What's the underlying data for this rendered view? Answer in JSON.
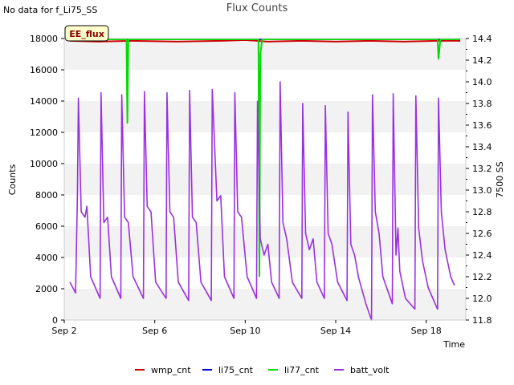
{
  "header": {
    "no_data_note": "No data for f_Li75_SS",
    "title": "Flux Counts"
  },
  "chart_data": {
    "type": "line",
    "title": "Flux Counts",
    "xlabel": "Time",
    "ylabel": "Counts",
    "y2label": "7500 SS",
    "annotation": "EE_flux",
    "xlim": [
      "2023-09-02T00:00",
      "2023-09-19T18:00"
    ],
    "x_ticks": [
      {
        "label": "Sep 2",
        "date": "2023-09-02"
      },
      {
        "label": "Sep 6",
        "date": "2023-09-06"
      },
      {
        "label": "Sep 10",
        "date": "2023-09-10"
      },
      {
        "label": "Sep 14",
        "date": "2023-09-14"
      },
      {
        "label": "Sep 18",
        "date": "2023-09-18"
      }
    ],
    "ylim": [
      0,
      18000
    ],
    "y_ticks": [
      0,
      2000,
      4000,
      6000,
      8000,
      10000,
      12000,
      14000,
      16000,
      18000
    ],
    "y2lim": [
      11.8,
      14.4
    ],
    "y2_ticks": [
      11.8,
      12.0,
      12.2,
      12.4,
      12.6,
      12.8,
      13.0,
      13.2,
      13.4,
      13.6,
      13.8,
      14.0,
      14.2,
      14.4
    ],
    "grid": "horizontal bands",
    "legend_position": "bottom",
    "series": [
      {
        "name": "wmp_cnt",
        "color": "#cc0000",
        "axis": "left",
        "points": [
          [
            "2023-09-02T06:00",
            17850
          ],
          [
            "2023-09-03T12:00",
            17800
          ],
          [
            "2023-09-05T00:00",
            17850
          ],
          [
            "2023-09-07T00:00",
            17800
          ],
          [
            "2023-09-09T00:00",
            17850
          ],
          [
            "2023-09-10T00:00",
            17900
          ],
          [
            "2023-09-11T00:00",
            17800
          ],
          [
            "2023-09-12T12:00",
            17850
          ],
          [
            "2023-09-14T00:00",
            17800
          ],
          [
            "2023-09-15T12:00",
            17850
          ],
          [
            "2023-09-17T00:00",
            17800
          ],
          [
            "2023-09-18T12:00",
            17850
          ],
          [
            "2023-09-19T12:00",
            17850
          ]
        ]
      },
      {
        "name": "li75_cnt",
        "color": "#0000cc",
        "axis": "left",
        "points": [
          [
            "2023-09-02T06:00",
            17950
          ],
          [
            "2023-09-19T12:00",
            17950
          ]
        ]
      },
      {
        "name": "li77_cnt",
        "color": "#00dd00",
        "axis": "left",
        "points": [
          [
            "2023-09-02T06:00",
            17950
          ],
          [
            "2023-09-04T18:00",
            17950
          ],
          [
            "2023-09-04T19:00",
            12600
          ],
          [
            "2023-09-04T20:00",
            17950
          ],
          [
            "2023-09-10T14:00",
            17950
          ],
          [
            "2023-09-10T15:00",
            2800
          ],
          [
            "2023-09-10T16:00",
            17000
          ],
          [
            "2023-09-10T18:00",
            17950
          ],
          [
            "2023-09-18T12:00",
            17950
          ],
          [
            "2023-09-18T13:00",
            16700
          ],
          [
            "2023-09-18T15:00",
            17950
          ],
          [
            "2023-09-19T12:00",
            17950
          ]
        ]
      },
      {
        "name": "batt_volt",
        "color": "#9b30e0",
        "axis": "right",
        "points": [
          [
            "2023-09-02T06:00",
            12.15
          ],
          [
            "2023-09-02T09:00",
            12.1
          ],
          [
            "2023-09-02T12:00",
            12.05
          ],
          [
            "2023-09-02T14:00",
            12.95
          ],
          [
            "2023-09-02T15:00",
            13.85
          ],
          [
            "2023-09-02T18:00",
            12.8
          ],
          [
            "2023-09-02T22:00",
            12.75
          ],
          [
            "2023-09-03T00:00",
            12.85
          ],
          [
            "2023-09-03T04:00",
            12.2
          ],
          [
            "2023-09-03T14:00",
            12.0
          ],
          [
            "2023-09-03T15:00",
            13.9
          ],
          [
            "2023-09-03T18:00",
            12.7
          ],
          [
            "2023-09-03T22:00",
            12.75
          ],
          [
            "2023-09-04T02:00",
            12.2
          ],
          [
            "2023-09-04T12:00",
            12.0
          ],
          [
            "2023-09-04T13:00",
            13.88
          ],
          [
            "2023-09-04T16:00",
            12.75
          ],
          [
            "2023-09-04T20:00",
            12.7
          ],
          [
            "2023-09-05T01:00",
            12.2
          ],
          [
            "2023-09-05T12:00",
            12.0
          ],
          [
            "2023-09-05T13:00",
            13.91
          ],
          [
            "2023-09-05T16:00",
            12.85
          ],
          [
            "2023-09-05T20:00",
            12.8
          ],
          [
            "2023-09-06T01:00",
            12.15
          ],
          [
            "2023-09-06T12:00",
            12.0
          ],
          [
            "2023-09-06T13:00",
            13.9
          ],
          [
            "2023-09-06T16:00",
            12.8
          ],
          [
            "2023-09-06T20:00",
            12.75
          ],
          [
            "2023-09-07T01:00",
            12.15
          ],
          [
            "2023-09-07T12:00",
            11.98
          ],
          [
            "2023-09-07T13:00",
            13.92
          ],
          [
            "2023-09-07T16:00",
            12.75
          ],
          [
            "2023-09-07T20:00",
            12.7
          ],
          [
            "2023-09-08T01:00",
            12.15
          ],
          [
            "2023-09-08T12:00",
            11.98
          ],
          [
            "2023-09-08T13:00",
            13.93
          ],
          [
            "2023-09-08T18:00",
            12.9
          ],
          [
            "2023-09-08T22:00",
            12.95
          ],
          [
            "2023-09-09T02:00",
            12.2
          ],
          [
            "2023-09-09T12:00",
            12.0
          ],
          [
            "2023-09-09T13:00",
            13.9
          ],
          [
            "2023-09-09T16:00",
            12.8
          ],
          [
            "2023-09-09T20:00",
            12.75
          ],
          [
            "2023-09-10T02:00",
            12.2
          ],
          [
            "2023-09-10T12:00",
            12.0
          ],
          [
            "2023-09-10T13:00",
            13.82
          ],
          [
            "2023-09-10T16:00",
            12.55
          ],
          [
            "2023-09-10T20:00",
            12.4
          ],
          [
            "2023-09-11T00:00",
            12.5
          ],
          [
            "2023-09-11T04:00",
            12.15
          ],
          [
            "2023-09-11T12:00",
            12.0
          ],
          [
            "2023-09-11T13:00",
            14.0
          ],
          [
            "2023-09-11T16:00",
            12.7
          ],
          [
            "2023-09-11T20:00",
            12.55
          ],
          [
            "2023-09-12T02:00",
            12.15
          ],
          [
            "2023-09-12T12:00",
            12.0
          ],
          [
            "2023-09-12T13:00",
            13.8
          ],
          [
            "2023-09-12T16:00",
            12.6
          ],
          [
            "2023-09-12T20:00",
            12.45
          ],
          [
            "2023-09-13T00:00",
            12.55
          ],
          [
            "2023-09-13T04:00",
            12.15
          ],
          [
            "2023-09-13T12:00",
            12.0
          ],
          [
            "2023-09-13T13:00",
            13.78
          ],
          [
            "2023-09-13T16:00",
            12.6
          ],
          [
            "2023-09-13T20:00",
            12.5
          ],
          [
            "2023-09-14T02:00",
            12.15
          ],
          [
            "2023-09-14T12:00",
            11.98
          ],
          [
            "2023-09-14T13:00",
            13.72
          ],
          [
            "2023-09-14T16:00",
            12.5
          ],
          [
            "2023-09-14T20:00",
            12.4
          ],
          [
            "2023-09-15T00:00",
            12.2
          ],
          [
            "2023-09-15T08:00",
            11.95
          ],
          [
            "2023-09-15T14:00",
            11.8
          ],
          [
            "2023-09-15T15:00",
            13.88
          ],
          [
            "2023-09-15T18:00",
            12.8
          ],
          [
            "2023-09-15T22:00",
            12.6
          ],
          [
            "2023-09-16T02:00",
            12.2
          ],
          [
            "2023-09-16T12:00",
            11.95
          ],
          [
            "2023-09-16T13:00",
            13.89
          ],
          [
            "2023-09-16T16:00",
            12.4
          ],
          [
            "2023-09-16T18:00",
            12.65
          ],
          [
            "2023-09-16T20:00",
            12.25
          ],
          [
            "2023-09-17T02:00",
            12.0
          ],
          [
            "2023-09-17T12:00",
            11.9
          ],
          [
            "2023-09-17T13:00",
            13.87
          ],
          [
            "2023-09-17T16:00",
            12.65
          ],
          [
            "2023-09-17T20:00",
            12.35
          ],
          [
            "2023-09-18T02:00",
            12.1
          ],
          [
            "2023-09-18T12:00",
            11.9
          ],
          [
            "2023-09-18T13:00",
            13.85
          ],
          [
            "2023-09-18T16:00",
            12.8
          ],
          [
            "2023-09-18T20:00",
            12.45
          ],
          [
            "2023-09-19T02:00",
            12.2
          ],
          [
            "2023-09-19T06:00",
            12.12
          ]
        ]
      }
    ]
  }
}
